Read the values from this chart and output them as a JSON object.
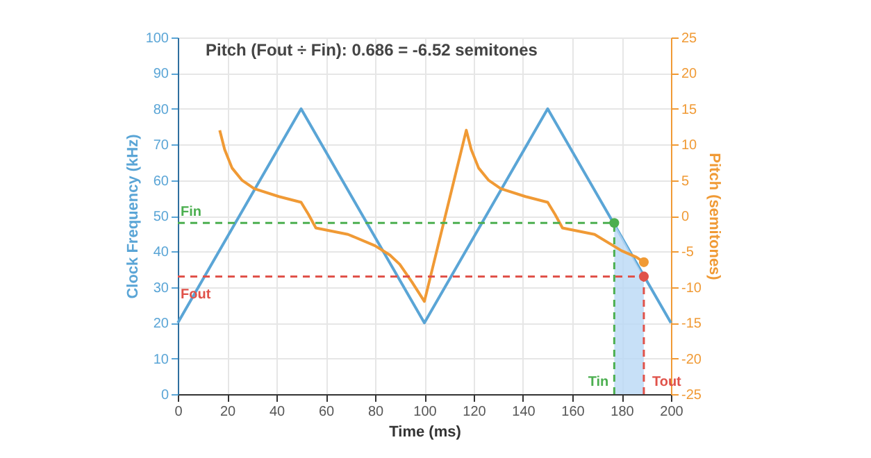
{
  "chart_data": {
    "type": "line",
    "title": "Pitch (Fout ÷ Fin): 0.686 = -6.52 semitones",
    "xlabel": "Time (ms)",
    "ylabel": "Clock Frequency (kHz)",
    "y2label": "Pitch (semitones)",
    "xlim": [
      0,
      200
    ],
    "xticks": [
      0,
      20,
      40,
      60,
      80,
      100,
      120,
      140,
      160,
      180,
      200
    ],
    "ylim": [
      0,
      100
    ],
    "yticks": [
      0,
      10,
      20,
      30,
      40,
      50,
      60,
      70,
      80,
      90,
      100
    ],
    "y2lim": [
      -25,
      25
    ],
    "y2ticks": [
      -25,
      -20,
      -15,
      -10,
      -5,
      0,
      5,
      10,
      15,
      20,
      25
    ],
    "grid": true,
    "series": [
      {
        "type": "area",
        "color": "#b9d8f5",
        "x": [
          177,
          189
        ],
        "values": [
          48,
          33
        ]
      },
      {
        "color": "#5aa5d6",
        "x": [
          0,
          50,
          100,
          150,
          200
        ],
        "values": [
          20,
          80,
          20,
          80,
          20
        ]
      },
      {
        "axis": "y2",
        "color": "#f09a35",
        "x": [
          17,
          19,
          22,
          26,
          31,
          41,
          50,
          53,
          56,
          69,
          80,
          86,
          90,
          95,
          100,
          117,
          119,
          122,
          126,
          131,
          141,
          150,
          153,
          156,
          169,
          180,
          186,
          189
        ],
        "values": [
          12,
          9.3,
          6.7,
          5,
          3.8,
          2.7,
          1.9,
          0.2,
          -1.7,
          -2.6,
          -4.2,
          -5.5,
          -6.8,
          -9.3,
          -12,
          12,
          9.3,
          6.7,
          5,
          3.8,
          2.7,
          1.9,
          0.2,
          -1.7,
          -2.6,
          -4.9,
          -5.8,
          -6.5
        ]
      },
      {
        "type": "scatter",
        "color": "#4caf50",
        "x": [
          177
        ],
        "values": [
          48
        ]
      },
      {
        "type": "scatter",
        "color": "#e0524a",
        "x": [
          189
        ],
        "values": [
          33
        ]
      },
      {
        "type": "scatter",
        "axis": "y2",
        "color": "#f09a35",
        "x": [
          189
        ],
        "values": [
          -6.5
        ]
      }
    ],
    "ref_lines": [
      {
        "axis": "y",
        "value": 48,
        "label": "Fin",
        "color": "#4caf50",
        "line_style": "dashed"
      },
      {
        "axis": "x",
        "value": 177,
        "label": "Tin",
        "color": "#4caf50",
        "line_style": "dashed"
      },
      {
        "axis": "y",
        "value": 33,
        "label": "Fout",
        "color": "#e0524a",
        "line_style": "dashed"
      },
      {
        "axis": "x",
        "value": 189,
        "label": "Tout",
        "color": "#e0524a",
        "line_style": "dashed"
      }
    ]
  }
}
